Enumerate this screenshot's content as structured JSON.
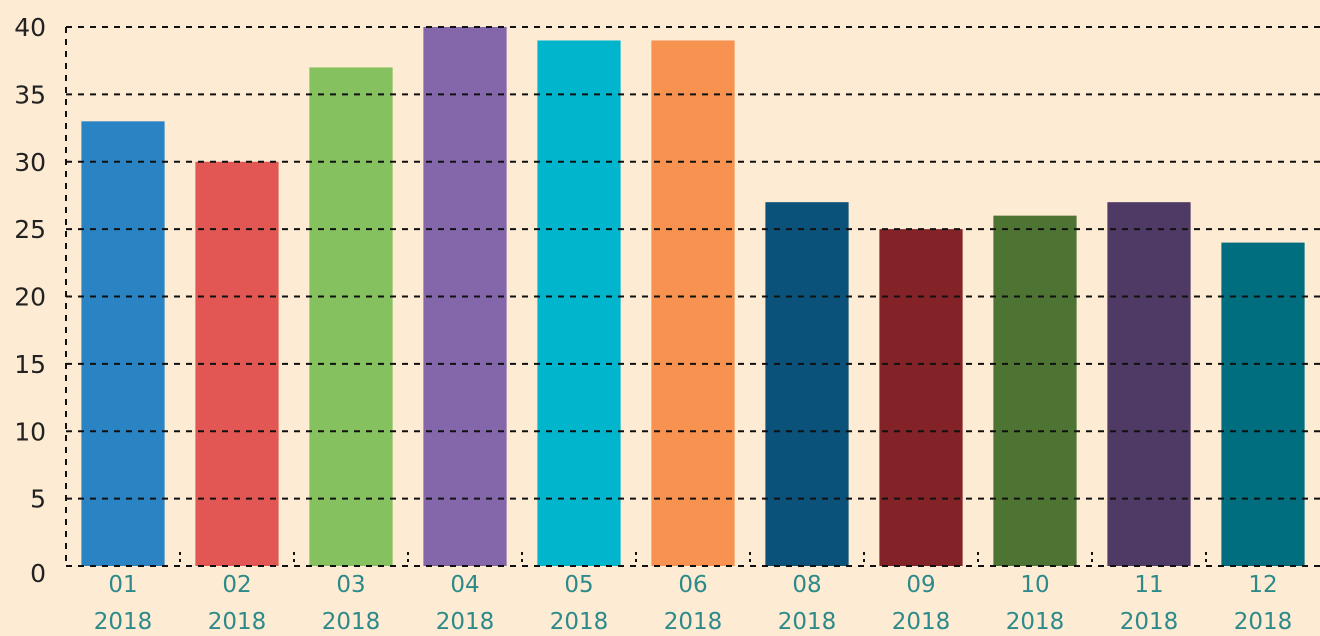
{
  "chart_data": {
    "type": "bar",
    "categories": [
      [
        "01",
        "2018"
      ],
      [
        "02",
        "2018"
      ],
      [
        "03",
        "2018"
      ],
      [
        "04",
        "2018"
      ],
      [
        "05",
        "2018"
      ],
      [
        "06",
        "2018"
      ],
      [
        "08",
        "2018"
      ],
      [
        "09",
        "2018"
      ],
      [
        "10",
        "2018"
      ],
      [
        "11",
        "2018"
      ],
      [
        "12",
        "2018"
      ]
    ],
    "values": [
      33,
      30,
      37,
      40,
      39,
      39,
      27,
      25,
      26,
      27,
      24
    ],
    "colors": [
      "#2a84c4",
      "#e25753",
      "#86c160",
      "#8467aa",
      "#00b5cc",
      "#f79250",
      "#0a527a",
      "#832327",
      "#4e7434",
      "#4e3a64",
      "#006e7e"
    ],
    "ylim": [
      0,
      40
    ],
    "yticks": [
      0,
      5,
      10,
      15,
      20,
      25,
      30,
      35,
      40
    ],
    "grid": true
  }
}
